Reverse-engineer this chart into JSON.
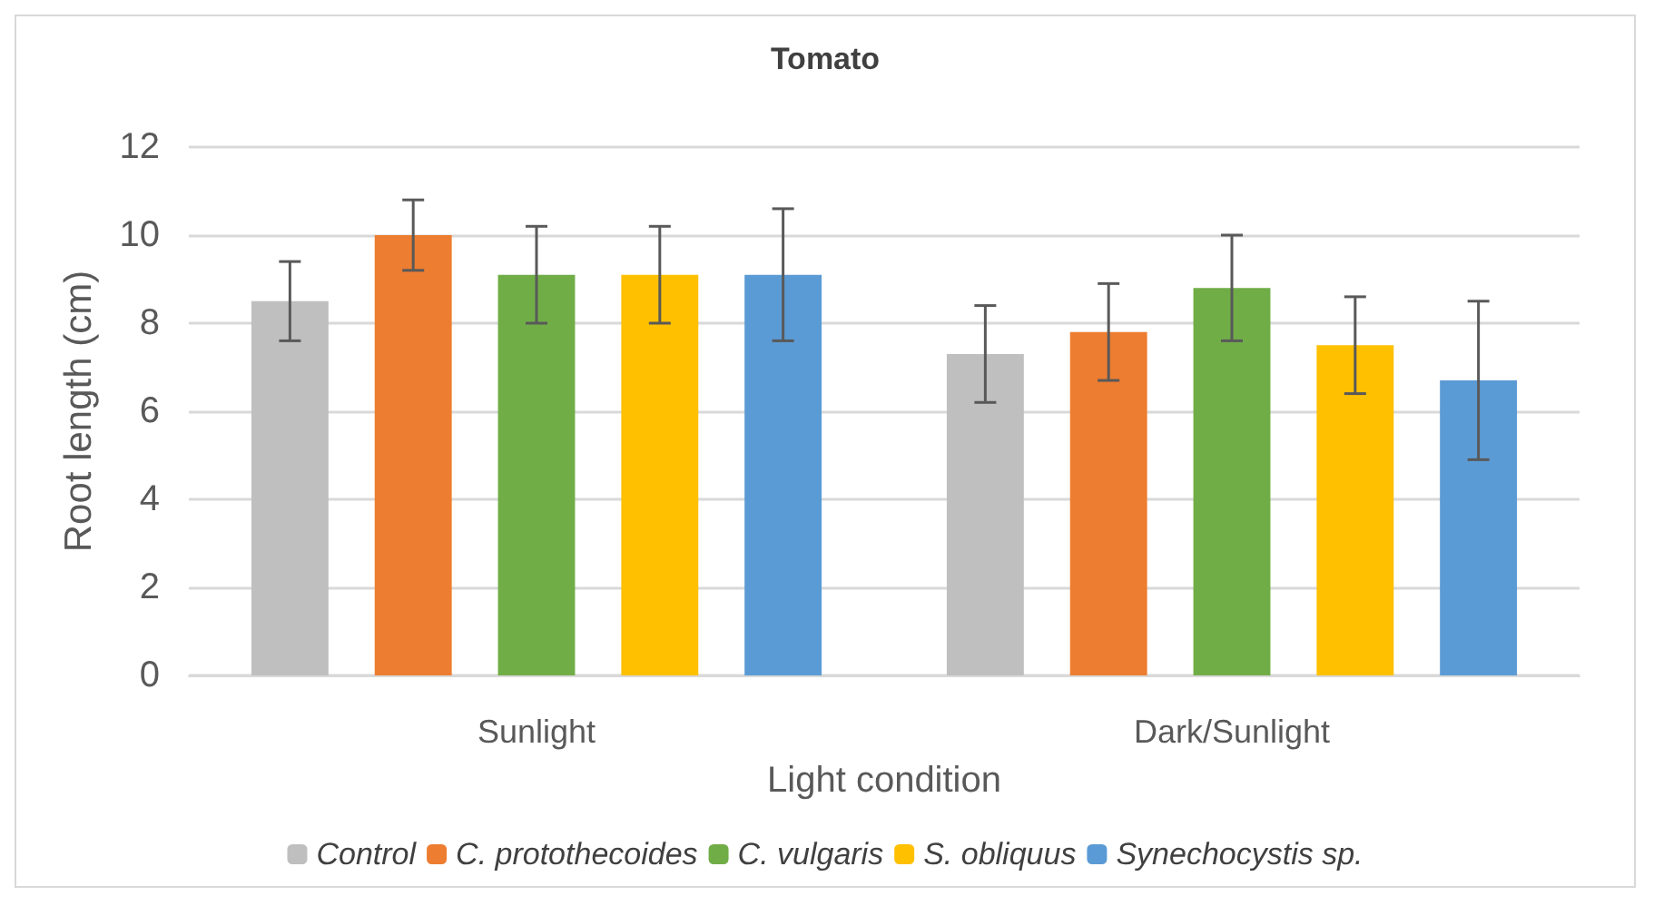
{
  "chart_data": {
    "type": "bar",
    "title": "Tomato",
    "xlabel": "Light condition",
    "ylabel": "Root length (cm)",
    "categories": [
      "Sunlight",
      "Dark/Sunlight"
    ],
    "series": [
      {
        "name": "Control",
        "color": "#bfbfbf",
        "values": [
          8.5,
          7.3
        ],
        "errors": [
          [
            7.6,
            9.4
          ],
          [
            6.2,
            8.4
          ]
        ]
      },
      {
        "name": "C. protothecoides",
        "color": "#ed7d31",
        "values": [
          10.0,
          7.8
        ],
        "errors": [
          [
            9.2,
            10.8
          ],
          [
            6.7,
            8.9
          ]
        ]
      },
      {
        "name": "C. vulgaris",
        "color": "#70ad47",
        "values": [
          9.1,
          8.8
        ],
        "errors": [
          [
            8.0,
            10.2
          ],
          [
            7.6,
            10.0
          ]
        ]
      },
      {
        "name": "S. obliquus",
        "color": "#ffc000",
        "values": [
          9.1,
          7.5
        ],
        "errors": [
          [
            8.0,
            10.2
          ],
          [
            6.4,
            8.6
          ]
        ]
      },
      {
        "name": "Synechocystis sp.",
        "color": "#5b9bd5",
        "values": [
          9.1,
          6.7
        ],
        "errors": [
          [
            7.6,
            10.6
          ],
          [
            4.9,
            8.5
          ]
        ]
      }
    ],
    "ylim": [
      0,
      12
    ],
    "yticks": [
      0,
      2,
      4,
      6,
      8,
      10,
      12
    ],
    "grid": "y",
    "legend": "bottom"
  }
}
